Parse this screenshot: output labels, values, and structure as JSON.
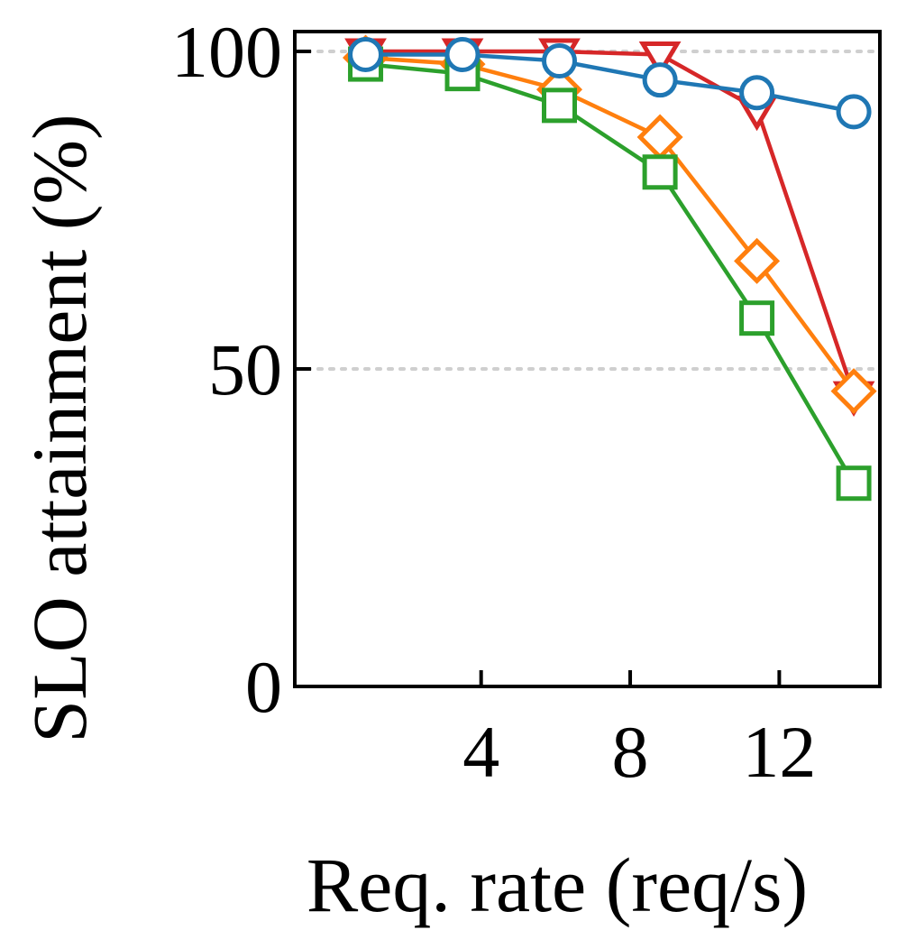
{
  "chart_data": {
    "type": "line",
    "title": "",
    "xlabel": "Req. rate (req/s)",
    "ylabel": "SLO attainment (%)",
    "xlim": [
      -1.0,
      14.7
    ],
    "ylim": [
      0,
      100
    ],
    "xticks": [
      4,
      8,
      12
    ],
    "xtick_labels": [
      "4",
      "8",
      "12"
    ],
    "yticks": [
      0,
      50,
      100
    ],
    "ytick_labels": [
      "0",
      "50",
      "100"
    ],
    "grid": "horizontal dotted at 50 and 100",
    "legend": "none",
    "x": [
      0.9,
      3.5,
      6.1,
      8.8,
      11.4,
      14.0
    ],
    "series": [
      {
        "name": "red-triangle",
        "color": "#d62728",
        "marker": "triangle-down",
        "values": [
          100,
          100,
          100,
          99.5,
          91,
          46
        ]
      },
      {
        "name": "orange-diamond",
        "color": "#ff7f0e",
        "marker": "diamond",
        "values": [
          99,
          98,
          94,
          86.5,
          67,
          46.5
        ]
      },
      {
        "name": "green-square",
        "color": "#2ca02c",
        "marker": "square",
        "values": [
          98,
          96.5,
          91.5,
          81,
          58,
          32
        ]
      },
      {
        "name": "blue-circle",
        "color": "#1f77b4",
        "marker": "circle",
        "values": [
          99.5,
          99.5,
          98.5,
          95.5,
          93.5,
          90.5
        ]
      }
    ]
  }
}
